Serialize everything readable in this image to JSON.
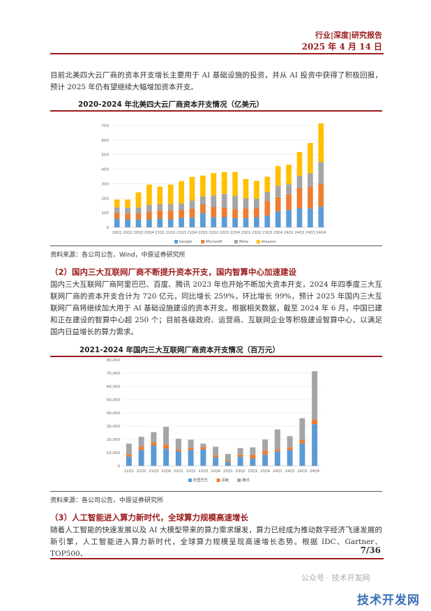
{
  "header": {
    "report_type": "行业|深度|研究报告",
    "date": "2025 年 4 月 14 日"
  },
  "intro_paragraph": "目前北美四大云厂商的资本开支增长主要用于 AI 基础设施的投资，并从 AI 投资中获得了积极回报，预计 2025 年仍有望继续大幅增加资本开支。",
  "section2": {
    "heading": "（2）国内三大互联网厂商不断提升资本开支，国内智算中心加速建设",
    "paragraph": "国内三大互联网厂商阿里巴巴、百度、腾讯 2023 年也开始不断加大资本开支，2024 年四季度三大互联网厂商的资本开支合计为 720 亿元，同比增长 259%，环比增长 99%，预计 2025 年国内三大互联网厂商将继续加大用于 AI 基础设施建设的资本开支。根据相关数据，截至 2024 年 6 月，中国已建和正在建设的智算中心超 250 个；目前各级政府、运营商、互联网企业等积极建设智算中心，以满足国内日益增长的算力需求。"
  },
  "section3": {
    "heading": "（3）人工智能进入算力新时代，全球算力规模高速增长",
    "paragraph": "随着人工智能的快速发展以及 AI 大模型带来的算力需求爆发，算力已经成为推动数字经济飞速发展的新引擎，人工智能进入算力新时代，全球算力规模呈现高速增长态势。根据 IDC、Gartner、TOP500、"
  },
  "page_number": "7/36",
  "watermark": {
    "small": "公众号 · 技术开发网",
    "big": "技术开发网"
  },
  "chart_data": [
    {
      "type": "bar",
      "stacked": true,
      "title": "2020-2024 年北美四大云厂商资本开支情况（亿美元）",
      "source": "资料来源：各公司公告，Wind，中原证券研究所",
      "categories": [
        "20Q1",
        "20Q2",
        "20Q3",
        "20Q4",
        "21Q1",
        "21Q2",
        "21Q3",
        "21Q4",
        "22Q1",
        "22Q2",
        "22Q3",
        "22Q4",
        "23Q1",
        "23Q2",
        "23Q3",
        "23Q4",
        "24Q1",
        "24Q2",
        "24Q3",
        "24Q4"
      ],
      "series": [
        {
          "name": "Google",
          "color": "#5b9bd5",
          "values": [
            60,
            55,
            54,
            55,
            60,
            55,
            65,
            68,
            98,
            70,
            72,
            63,
            62,
            69,
            81,
            110,
            120,
            132,
            131,
            143
          ]
        },
        {
          "name": "Microsoft",
          "color": "#ed7d31",
          "values": [
            40,
            40,
            45,
            52,
            55,
            60,
            55,
            62,
            60,
            72,
            65,
            62,
            67,
            65,
            99,
            97,
            109,
            139,
            149,
            158
          ]
        },
        {
          "name": "Meta",
          "color": "#a5a5a5",
          "values": [
            38,
            40,
            39,
            48,
            44,
            46,
            45,
            55,
            55,
            78,
            93,
            92,
            70,
            63,
            65,
            79,
            67,
            84,
            92,
            148
          ]
        },
        {
          "name": "Amazon",
          "color": "#ffc000",
          "values": [
            54,
            57,
            103,
            139,
            121,
            133,
            153,
            162,
            143,
            153,
            151,
            164,
            133,
            123,
            103,
            135,
            135,
            163,
            208,
            266
          ]
        }
      ],
      "ylim": [
        0,
        700
      ],
      "yticks": [
        0,
        100,
        200,
        300,
        400,
        500,
        600,
        700
      ],
      "legend": "bottom",
      "grid": true
    },
    {
      "type": "bar",
      "stacked": true,
      "title": "2021-2024 年国内三大互联网厂商资本开支情况（百万元）",
      "source": "资料来源：各公司公告，中原证券研究所",
      "categories": [
        "21Q1",
        "21Q2",
        "21Q3",
        "21Q4",
        "22Q1",
        "22Q2",
        "22Q3",
        "22Q4",
        "23Q1",
        "23Q2",
        "23Q3",
        "23Q4",
        "24Q1",
        "24Q2",
        "24Q3",
        "24Q4"
      ],
      "series": [
        {
          "name": "阿里巴巴",
          "color": "#5b9bd5",
          "values": [
            7000,
            12000,
            15500,
            13000,
            11000,
            12000,
            12500,
            6500,
            3000,
            7000,
            5500,
            8500,
            11000,
            12000,
            17000,
            31500
          ]
        },
        {
          "name": "百度",
          "color": "#ed7d31",
          "values": [
            1800,
            2500,
            2500,
            3000,
            1500,
            1800,
            1800,
            1500,
            1000,
            1500,
            3000,
            3000,
            1500,
            2000,
            2500,
            3500
          ]
        },
        {
          "name": "腾讯",
          "color": "#a5a5a5",
          "values": [
            8000,
            7500,
            7500,
            13500,
            8000,
            6000,
            2500,
            6500,
            5000,
            5000,
            5500,
            8500,
            15000,
            8500,
            16500,
            36500
          ]
        }
      ],
      "ylim": [
        0,
        80000
      ],
      "yticks": [
        0,
        10000,
        20000,
        30000,
        40000,
        50000,
        60000,
        70000,
        80000
      ],
      "legend": "bottom",
      "grid": true
    }
  ]
}
